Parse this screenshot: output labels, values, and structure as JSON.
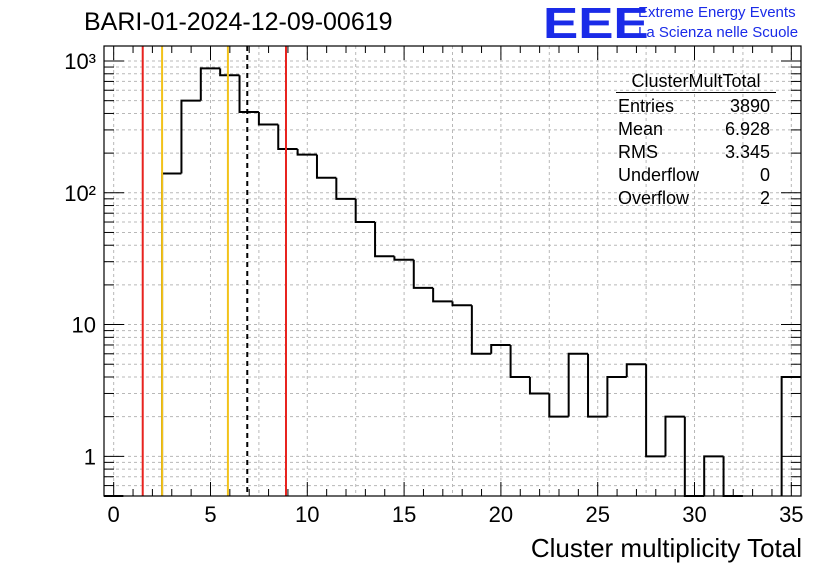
{
  "header": {
    "title": "BARI-01-2024-12-09-00619",
    "logo_text": "EEE",
    "logo_line1": "Extreme Energy Events",
    "logo_line2": "La Scienza nelle Scuole"
  },
  "stats_box": {
    "name": "ClusterMultTotal",
    "rows": [
      {
        "label": "Entries",
        "value": "3890"
      },
      {
        "label": "Mean",
        "value": "6.928"
      },
      {
        "label": "RMS",
        "value": "3.345"
      },
      {
        "label": "Underflow",
        "value": "0"
      },
      {
        "label": "Overflow",
        "value": "2"
      }
    ]
  },
  "chart_data": {
    "type": "histogram",
    "xlabel": "Cluster multiplicity Total",
    "ylabel": "",
    "xlim": [
      -0.5,
      35.5
    ],
    "ylim": [
      0.5,
      1300
    ],
    "yscale": "log",
    "grid": true,
    "bin_edges_start": -0.5,
    "bin_width": 1,
    "counts": [
      0,
      0,
      0,
      140,
      500,
      880,
      780,
      410,
      330,
      215,
      195,
      130,
      90,
      60,
      33,
      31,
      19,
      15,
      14,
      6,
      7,
      4,
      3,
      2,
      6,
      2,
      4,
      5,
      1,
      2,
      0,
      1,
      0,
      0,
      0,
      4
    ],
    "x_ticks": [
      0,
      5,
      10,
      15,
      20,
      25,
      30,
      35
    ],
    "x_tick_labels": [
      "0",
      "5",
      "10",
      "15",
      "20",
      "25",
      "30",
      "35"
    ],
    "y_ticks": [
      1,
      10,
      100,
      1000
    ],
    "y_tick_labels": [
      "1",
      "10",
      "10²",
      "10³"
    ],
    "vertical_lines": [
      {
        "x": 1.5,
        "color": "#e8231f",
        "style": "solid"
      },
      {
        "x": 2.5,
        "color": "#f2c21a",
        "style": "solid"
      },
      {
        "x": 5.9,
        "color": "#f2c21a",
        "style": "solid"
      },
      {
        "x": 6.9,
        "color": "#000000",
        "style": "dashed"
      },
      {
        "x": 8.9,
        "color": "#e8231f",
        "style": "solid"
      }
    ],
    "line_color": "#000000"
  }
}
